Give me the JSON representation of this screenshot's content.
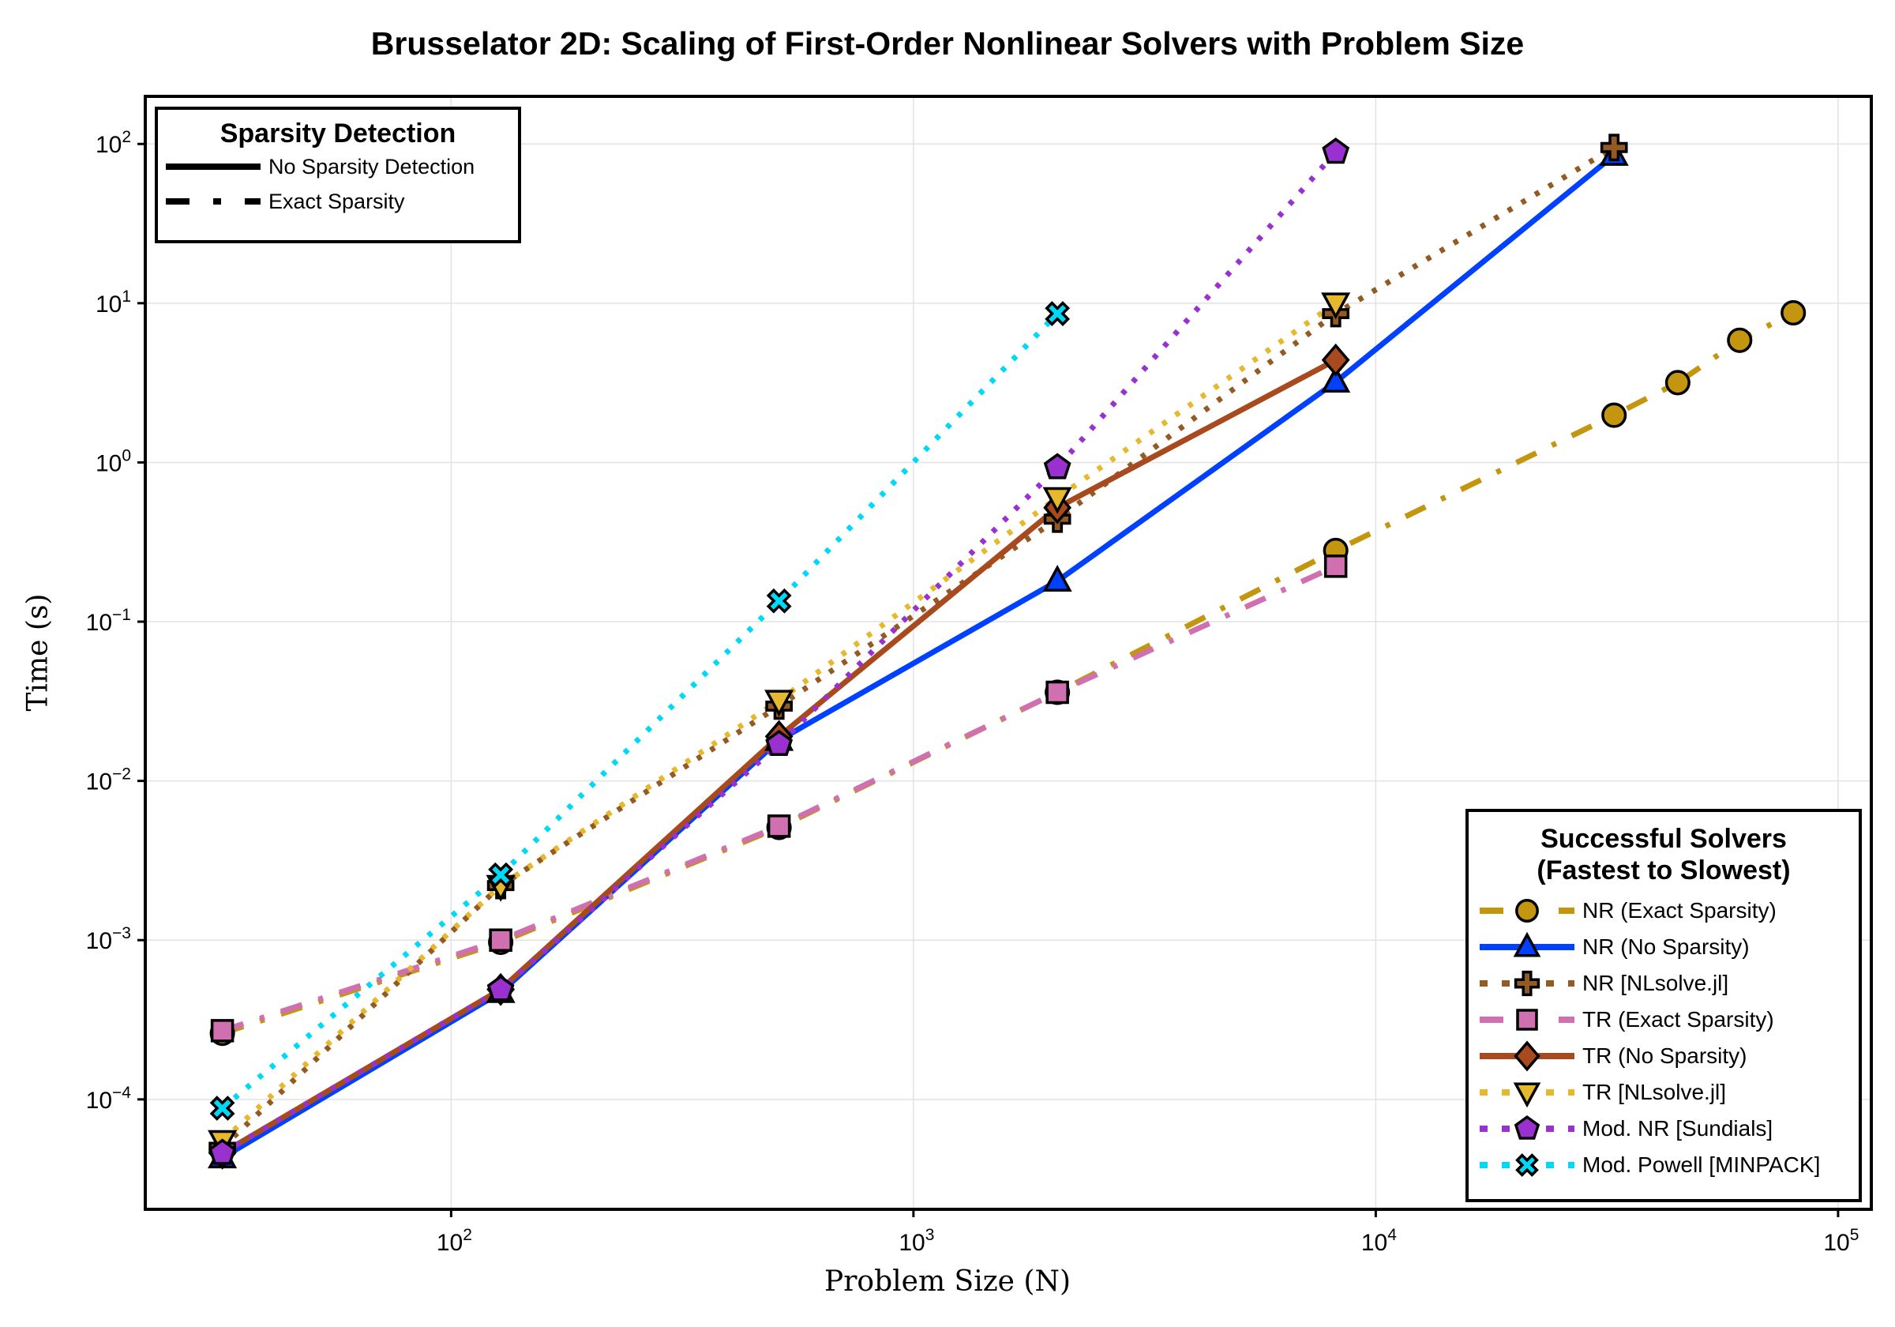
{
  "chart_data": {
    "type": "line",
    "title": "Brusselator 2D: Scaling of First-Order Nonlinear Solvers with Problem Size",
    "xlabel": "Problem Size (N)",
    "ylabel": "Time (s)",
    "xscale": "log",
    "yscale": "log",
    "xlim": [
      21.8,
      118000
    ],
    "ylim": [
      2.04e-05,
      199
    ],
    "grid": true,
    "xticks": [
      {
        "v": 100,
        "label": "10",
        "exp": "2"
      },
      {
        "v": 1000,
        "label": "10",
        "exp": "3"
      },
      {
        "v": 10000,
        "label": "10",
        "exp": "4"
      },
      {
        "v": 100000,
        "label": "10",
        "exp": "5"
      }
    ],
    "yticks": [
      {
        "v": 0.0001,
        "label": "10",
        "exp": "−4"
      },
      {
        "v": 0.001,
        "label": "10",
        "exp": "−3"
      },
      {
        "v": 0.01,
        "label": "10",
        "exp": "−2"
      },
      {
        "v": 0.1,
        "label": "10",
        "exp": "−1"
      },
      {
        "v": 1,
        "label": "10",
        "exp": "0"
      },
      {
        "v": 10,
        "label": "10",
        "exp": "1"
      },
      {
        "v": 100,
        "label": "10",
        "exp": "2"
      }
    ],
    "style_legend": {
      "title": "Sparsity Detection",
      "placement": "top-left",
      "entries": [
        {
          "label": "No Sparsity Detection",
          "style": "solid"
        },
        {
          "label": "Exact Sparsity",
          "style": "dashdot"
        }
      ]
    },
    "series_legend": {
      "title_line1": "Successful Solvers",
      "title_line2": "(Fastest to Slowest)",
      "placement": "bottom-right"
    },
    "series": [
      {
        "name": "NR (Exact Sparsity)",
        "color": "#C4960F",
        "style": "dashdot",
        "marker": "circle",
        "x": [
          32,
          128,
          512,
          2048,
          8192,
          32768,
          45000,
          61250,
          80000
        ],
        "y": [
          0.00026,
          0.00097,
          0.0051,
          0.036,
          0.28,
          1.98,
          3.17,
          5.85,
          8.7
        ]
      },
      {
        "name": "NR (No Sparsity)",
        "color": "#0040FF",
        "style": "solid",
        "marker": "triangle-up",
        "x": [
          32,
          128,
          512,
          2048,
          8192,
          32768
        ],
        "y": [
          4.3e-05,
          0.00047,
          0.018,
          0.18,
          3.2,
          85
        ]
      },
      {
        "name": "NR [NLsolve.jl]",
        "color": "#935A24",
        "style": "dotted",
        "marker": "cross",
        "x": [
          32,
          128,
          512,
          2048,
          8192,
          32768
        ],
        "y": [
          5e-05,
          0.0022,
          0.0295,
          0.44,
          8.6,
          95
        ]
      },
      {
        "name": "TR (Exact Sparsity)",
        "color": "#D070B0",
        "style": "dashdot",
        "marker": "square",
        "x": [
          32,
          128,
          512,
          2048,
          8192
        ],
        "y": [
          0.00027,
          0.001,
          0.0052,
          0.036,
          0.223
        ]
      },
      {
        "name": "TR (No Sparsity)",
        "color": "#A84A1E",
        "style": "solid",
        "marker": "diamond",
        "x": [
          32,
          128,
          512,
          2048,
          8192
        ],
        "y": [
          4.6e-05,
          0.00049,
          0.019,
          0.52,
          4.4
        ]
      },
      {
        "name": "TR [NLsolve.jl]",
        "color": "#E6B82E",
        "style": "dotted",
        "marker": "triangle-down",
        "x": [
          32,
          128,
          512,
          2048,
          8192
        ],
        "y": [
          5.5e-05,
          0.0022,
          0.032,
          0.6,
          10
        ]
      },
      {
        "name": "Mod. NR [Sundials]",
        "color": "#9B30D0",
        "style": "dotted",
        "marker": "pentagon",
        "x": [
          32,
          128,
          512,
          2048,
          8192
        ],
        "y": [
          4.6e-05,
          0.00049,
          0.017,
          0.93,
          89
        ]
      },
      {
        "name": "Mod. Powell [MINPACK]",
        "color": "#00D8F8",
        "style": "dotted",
        "marker": "x",
        "x": [
          32,
          128,
          512,
          2048
        ],
        "y": [
          8.8e-05,
          0.00257,
          0.135,
          8.6
        ]
      }
    ]
  }
}
